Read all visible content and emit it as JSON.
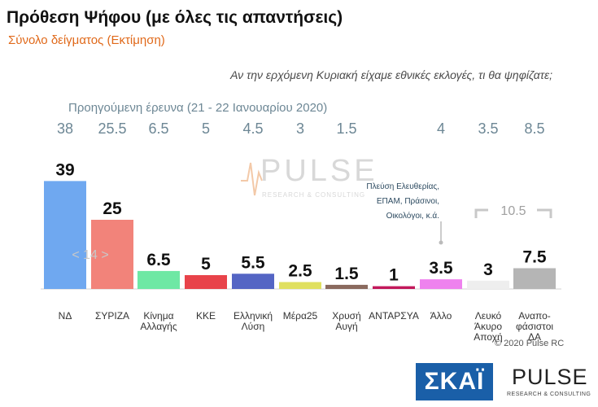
{
  "header": {
    "title": "Πρόθεση Ψήφου (με όλες τις απαντήσεις)",
    "subtitle": "Σύνολο δείγματος   (Εκτίμηση)",
    "question": "Αν την ερχόμενη Κυριακή είχαμε εθνικές εκλογές, τι θα ψηφίζατε;"
  },
  "previous": {
    "title": "Προηγούμενη έρευνα  (21 - 22 Ιανουαρίου  2020)"
  },
  "watermark": {
    "word": "PULSE",
    "tag": "RESEARCH & CONSULTING"
  },
  "annotation": "Πλεύση Ελευθερίας,\nΕΠΑΜ, Πράσινοι,\nΟικολόγοι, κ.ά.",
  "gap_label": "< 14 >",
  "bracket_label": "10.5",
  "copyright": "© 2020 Pulse RC",
  "logos": {
    "skai": "ΣΚΑΪ",
    "pulse": "PULSE",
    "pulse_tag": "RESEARCH & CONSULTING"
  },
  "colors": {
    "accent": "#e0691a",
    "prev": "#6d8795",
    "bracket": "#c8c8c8"
  },
  "chart_data": {
    "type": "bar",
    "categories": [
      "ΝΔ",
      "ΣΥΡΙΖΑ",
      "Κίνημα\nΑλλαγής",
      "ΚΚΕ",
      "Ελληνική\nΛύση",
      "Μέρα25",
      "Χρυσή\nΑυγή",
      "ΑΝΤΑΡΣΥΑ",
      "Άλλο",
      "Λευκό\nΆκυρο\nΑποχή",
      "Αναπο-\nφάσιστοι\nΔΑ"
    ],
    "series": [
      {
        "values": [
          39,
          25,
          6.5,
          5,
          5.5,
          2.5,
          1.5,
          1,
          3.5,
          3,
          7.5
        ]
      },
      {
        "values": [
          38,
          25.5,
          6.5,
          5,
          4.5,
          3,
          1.5,
          null,
          4,
          3.5,
          8.5
        ]
      }
    ],
    "labels": [
      "39",
      "25",
      "6.5",
      "5",
      "5.5",
      "2.5",
      "1.5",
      "1",
      "3.5",
      "3",
      "7.5"
    ],
    "prev_labels": [
      "38",
      "25.5",
      "6.5",
      "5",
      "4.5",
      "3",
      "1.5",
      "",
      "4",
      "3.5",
      "8.5"
    ],
    "colors": [
      "#6fa8f0",
      "#f2837a",
      "#6ee8a4",
      "#e8434a",
      "#5465c4",
      "#e0e060",
      "#8a6a5e",
      "#c2185b",
      "#ee82ee",
      "#eeeeee",
      "#b5b5b5"
    ],
    "ylim": [
      0,
      40
    ]
  }
}
